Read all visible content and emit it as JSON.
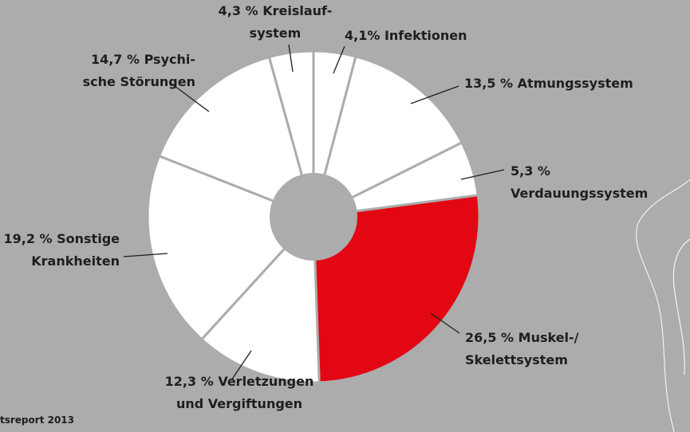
{
  "chart_data": {
    "type": "pie",
    "categories": [
      "Infektionen",
      "Atmungssystem",
      "Verdauungssystem",
      "Muskel-/\nSkelettsystem",
      "Verletzungen\nund Vergiftungen",
      "Sonstige\nKrankheiten",
      "Psychi-\nsche Störungen",
      "Kreislauf-\nsystem"
    ],
    "values": [
      4.1,
      13.5,
      5.3,
      26.5,
      12.3,
      19.2,
      14.7,
      4.3
    ],
    "value_labels": [
      "4,1%",
      "13,5 %",
      "5,3 %",
      "26,5 %",
      "12,3 %",
      "19,2 %",
      "14,7 %",
      "4,3 %"
    ],
    "colors": [
      "#ffffff",
      "#ffffff",
      "#ffffff",
      "#e30613",
      "#ffffff",
      "#ffffff",
      "#ffffff",
      "#ffffff"
    ]
  },
  "source": "tsreport 2013"
}
